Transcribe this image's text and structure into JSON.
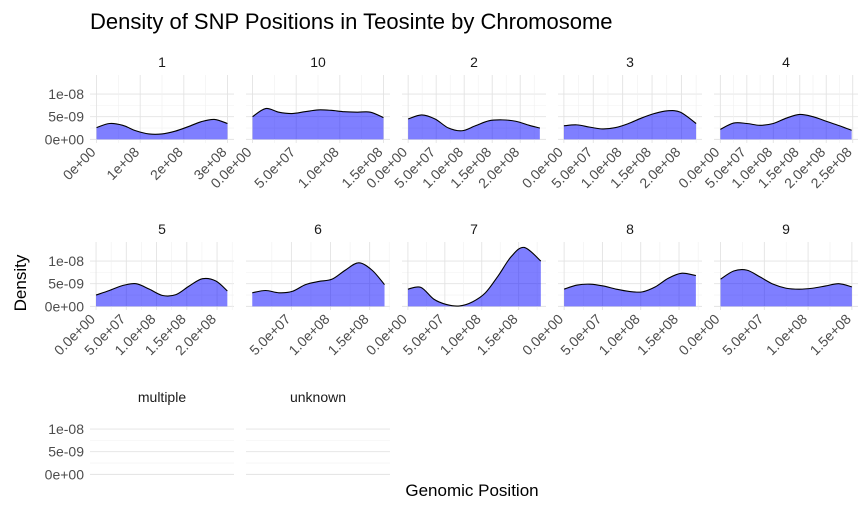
{
  "chart_data": {
    "type": "area",
    "title": "Density of SNP Positions in Teosinte by Chromosome",
    "xlabel": "Genomic Position",
    "ylabel": "Density",
    "grid": true,
    "fill_color": "#0000ff",
    "fill_opacity": 0.5,
    "line_color": "#000000",
    "strip_background": "none",
    "y_ticks": [
      {
        "value": 0,
        "label": "0e+00"
      },
      {
        "value": 5e-09,
        "label": "5e-09"
      },
      {
        "value": 1e-08,
        "label": "1e-08"
      }
    ],
    "ylim": [
      -8e-10,
      1.42e-08
    ],
    "panels": [
      {
        "name": "1",
        "xlim": [
          -15000000.0,
          315000000.0
        ],
        "x_ticks": [
          {
            "value": 0,
            "label": "0e+00"
          },
          {
            "value": 100000000.0,
            "label": "1e+08"
          },
          {
            "value": 200000000.0,
            "label": "2e+08"
          },
          {
            "value": 300000000.0,
            "label": "3e+08"
          }
        ],
        "x": [
          0,
          30000000.0,
          60000000.0,
          90000000.0,
          120000000.0,
          150000000.0,
          180000000.0,
          210000000.0,
          240000000.0,
          270000000.0,
          300000000.0
        ],
        "y": [
          2.6e-09,
          3.5e-09,
          3.1e-09,
          1.9e-09,
          1.2e-09,
          1.2e-09,
          1.8e-09,
          2.8e-09,
          3.9e-09,
          4.4e-09,
          3.5e-09
        ]
      },
      {
        "name": "10",
        "xlim": [
          -7500000.0,
          157500000.0
        ],
        "x_ticks": [
          {
            "value": 0,
            "label": "0.0e+00"
          },
          {
            "value": 50000000.0,
            "label": "5.0e+07"
          },
          {
            "value": 100000000.0,
            "label": "1.0e+08"
          },
          {
            "value": 150000000.0,
            "label": "1.5e+08"
          }
        ],
        "x": [
          0,
          15000000.0,
          30000000.0,
          45000000.0,
          60000000.0,
          75000000.0,
          90000000.0,
          105000000.0,
          120000000.0,
          135000000.0,
          150000000.0
        ],
        "y": [
          5e-09,
          6.8e-09,
          6e-09,
          5.7e-09,
          6.1e-09,
          6.5e-09,
          6.4e-09,
          6.1e-09,
          6e-09,
          6e-09,
          4.8e-09
        ]
      },
      {
        "name": "2",
        "xlim": [
          -11000000.0,
          246000000.0
        ],
        "x_ticks": [
          {
            "value": 0,
            "label": "0.0e+00"
          },
          {
            "value": 50000000.0,
            "label": "5.0e+07"
          },
          {
            "value": 100000000.0,
            "label": "1.0e+08"
          },
          {
            "value": 150000000.0,
            "label": "1.5e+08"
          },
          {
            "value": 200000000.0,
            "label": "2.0e+08"
          }
        ],
        "x": [
          0,
          24000000.0,
          48000000.0,
          72000000.0,
          96000000.0,
          120000000.0,
          144000000.0,
          168000000.0,
          192000000.0,
          216000000.0,
          235000000.0
        ],
        "y": [
          4.5e-09,
          5.4e-09,
          4.5e-09,
          2.5e-09,
          1.9e-09,
          3e-09,
          4.1e-09,
          4.3e-09,
          4e-09,
          3.1e-09,
          2.5e-09
        ]
      },
      {
        "name": "3",
        "xlim": [
          -10000000.0,
          235000000.0
        ],
        "x_ticks": [
          {
            "value": 0,
            "label": "0.0e+00"
          },
          {
            "value": 50000000.0,
            "label": "5.0e+07"
          },
          {
            "value": 100000000.0,
            "label": "1.0e+08"
          },
          {
            "value": 150000000.0,
            "label": "1.5e+08"
          },
          {
            "value": 200000000.0,
            "label": "2.0e+08"
          }
        ],
        "x": [
          0,
          22000000.0,
          44000000.0,
          66000000.0,
          88000000.0,
          110000000.0,
          132000000.0,
          154000000.0,
          176000000.0,
          198000000.0,
          225000000.0
        ],
        "y": [
          3e-09,
          3.2e-09,
          2.7e-09,
          2.3e-09,
          2.6e-09,
          3.5e-09,
          4.7e-09,
          5.7e-09,
          6.3e-09,
          6e-09,
          3.5e-09
        ]
      },
      {
        "name": "4",
        "xlim": [
          -12000000.0,
          260000000.0
        ],
        "x_ticks": [
          {
            "value": 0,
            "label": "0.0e+00"
          },
          {
            "value": 50000000.0,
            "label": "5.0e+07"
          },
          {
            "value": 100000000.0,
            "label": "1.0e+08"
          },
          {
            "value": 150000000.0,
            "label": "1.5e+08"
          },
          {
            "value": 200000000.0,
            "label": "2.0e+08"
          },
          {
            "value": 250000000.0,
            "label": "2.5e+08"
          }
        ],
        "x": [
          0,
          25000000.0,
          50000000.0,
          75000000.0,
          100000000.0,
          125000000.0,
          150000000.0,
          175000000.0,
          200000000.0,
          225000000.0,
          248000000.0
        ],
        "y": [
          2.2e-09,
          3.6e-09,
          3.5e-09,
          3.1e-09,
          3.5e-09,
          4.7e-09,
          5.5e-09,
          5e-09,
          4e-09,
          3e-09,
          2e-09
        ]
      },
      {
        "name": "5",
        "xlim": [
          -10000000.0,
          228000000.0
        ],
        "x_ticks": [
          {
            "value": 0,
            "label": "0.0e+00"
          },
          {
            "value": 50000000.0,
            "label": "5.0e+07"
          },
          {
            "value": 100000000.0,
            "label": "1.0e+08"
          },
          {
            "value": 150000000.0,
            "label": "1.5e+08"
          },
          {
            "value": 200000000.0,
            "label": "2.0e+08"
          }
        ],
        "x": [
          0,
          22000000.0,
          44000000.0,
          66000000.0,
          88000000.0,
          110000000.0,
          132000000.0,
          154000000.0,
          176000000.0,
          198000000.0,
          217000000.0
        ],
        "y": [
          2.5e-09,
          3.5e-09,
          4.6e-09,
          5e-09,
          3.8e-09,
          2.4e-09,
          2.6e-09,
          4.5e-09,
          6.1e-09,
          5.6e-09,
          3.4e-09
        ]
      },
      {
        "name": "6",
        "xlim": [
          -8000000.0,
          176000000.0
        ],
        "x_ticks": [
          {
            "value": 50000000.0,
            "label": "5.0e+07"
          },
          {
            "value": 100000000.0,
            "label": "1.0e+08"
          },
          {
            "value": 150000000.0,
            "label": "1.5e+08"
          }
        ],
        "x": [
          0,
          17000000.0,
          34000000.0,
          51000000.0,
          68000000.0,
          85000000.0,
          102000000.0,
          119000000.0,
          136000000.0,
          153000000.0,
          169000000.0
        ],
        "y": [
          3e-09,
          3.5e-09,
          3e-09,
          3.3e-09,
          4.8e-09,
          5.5e-09,
          6e-09,
          8e-09,
          9.6e-09,
          8e-09,
          4.8e-09
        ]
      },
      {
        "name": "7",
        "xlim": [
          -8000000.0,
          187000000.0
        ],
        "x_ticks": [
          {
            "value": 0,
            "label": "0.0e+00"
          },
          {
            "value": 50000000.0,
            "label": "5.0e+07"
          },
          {
            "value": 100000000.0,
            "label": "1.0e+08"
          },
          {
            "value": 150000000.0,
            "label": "1.5e+08"
          }
        ],
        "x": [
          0,
          17500000.0,
          35000000.0,
          52500000.0,
          70000000.0,
          87500000.0,
          105000000.0,
          122500000.0,
          140000000.0,
          157500000.0,
          180000000.0
        ],
        "y": [
          3.8e-09,
          4.2e-09,
          1.6e-09,
          4e-10,
          1e-10,
          1e-09,
          3e-09,
          6.8e-09,
          1.1e-08,
          1.3e-08,
          1e-08
        ]
      },
      {
        "name": "8",
        "xlim": [
          -8000000.0,
          180000000.0
        ],
        "x_ticks": [
          {
            "value": 0,
            "label": "0.0e+00"
          },
          {
            "value": 50000000.0,
            "label": "5.0e+07"
          },
          {
            "value": 100000000.0,
            "label": "1.0e+08"
          },
          {
            "value": 150000000.0,
            "label": "1.5e+08"
          }
        ],
        "x": [
          0,
          17000000.0,
          34000000.0,
          51000000.0,
          68000000.0,
          85000000.0,
          102000000.0,
          119000000.0,
          136000000.0,
          153000000.0,
          172000000.0
        ],
        "y": [
          3.8e-09,
          4.7e-09,
          4.9e-09,
          4.5e-09,
          3.8e-09,
          3.3e-09,
          3.2e-09,
          4.3e-09,
          6.2e-09,
          7.3e-09,
          6.8e-09
        ]
      },
      {
        "name": "9",
        "xlim": [
          -7500000.0,
          157000000.0
        ],
        "x_ticks": [
          {
            "value": 0,
            "label": "0.0e+00"
          },
          {
            "value": 50000000.0,
            "label": "5.0e+07"
          },
          {
            "value": 100000000.0,
            "label": "1.0e+08"
          },
          {
            "value": 150000000.0,
            "label": "1.5e+08"
          }
        ],
        "x": [
          0,
          15000000.0,
          30000000.0,
          45000000.0,
          60000000.0,
          75000000.0,
          90000000.0,
          105000000.0,
          120000000.0,
          135000000.0,
          150000000.0
        ],
        "y": [
          6e-09,
          7.8e-09,
          8e-09,
          6.5e-09,
          4.9e-09,
          4e-09,
          3.8e-09,
          4e-09,
          4.5e-09,
          5e-09,
          4.3e-09
        ]
      },
      {
        "name": "multiple",
        "xlim": null,
        "x_ticks": [],
        "x": [],
        "y": []
      },
      {
        "name": "unknown",
        "xlim": null,
        "x_ticks": [],
        "x": [],
        "y": []
      }
    ]
  }
}
